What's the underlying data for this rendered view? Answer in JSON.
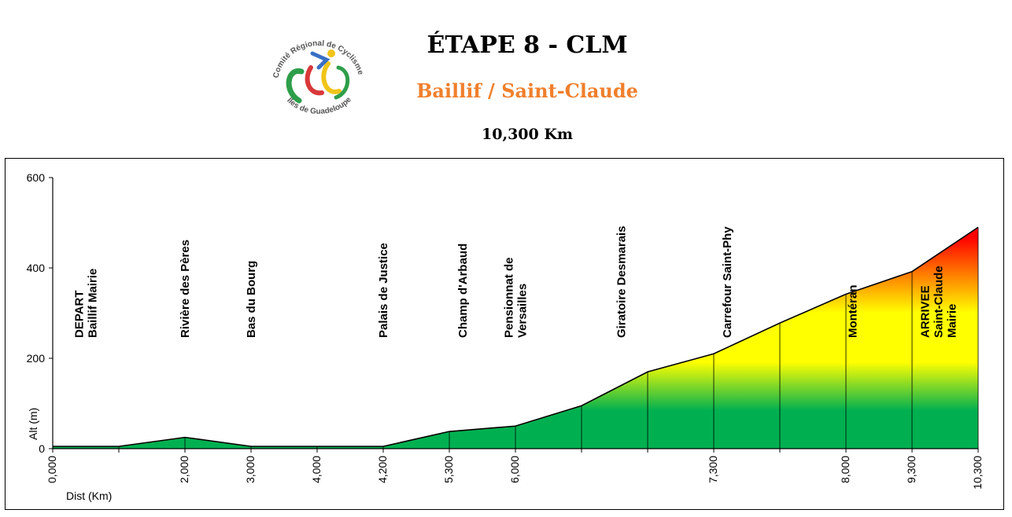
{
  "header": {
    "title": "ÉTAPE 8 - CLM",
    "subtitle": "Baillif / Saint-Claude",
    "distance": "10,300 Km",
    "logo_text_top": "Comité Régional de Cyclisme",
    "logo_text_bottom": "Îles de Guadeloupe"
  },
  "colors": {
    "title": "#000000",
    "subtitle": "#f07f2c",
    "gradient_low": "#00b050",
    "gradient_mid": "#ffff00",
    "gradient_high": "#ff0000"
  },
  "chart_data": {
    "type": "area",
    "title": "",
    "xlabel": "Dist (Km)",
    "ylabel": "Alt (m)",
    "ylim": [
      0,
      600
    ],
    "y_ticks": [
      "0",
      "200",
      "400",
      "600"
    ],
    "grid": false,
    "points": [
      {
        "idx": 0,
        "alt": 5
      },
      {
        "idx": 1,
        "alt": 5
      },
      {
        "idx": 2,
        "alt": 25
      },
      {
        "idx": 3,
        "alt": 5
      },
      {
        "idx": 4,
        "alt": 5
      },
      {
        "idx": 5,
        "alt": 5
      },
      {
        "idx": 6,
        "alt": 38
      },
      {
        "idx": 7,
        "alt": 50
      },
      {
        "idx": 8,
        "alt": 95
      },
      {
        "idx": 9,
        "alt": 170
      },
      {
        "idx": 10,
        "alt": 210
      },
      {
        "idx": 11,
        "alt": 278
      },
      {
        "idx": 12,
        "alt": 342
      },
      {
        "idx": 13,
        "alt": 392
      },
      {
        "idx": 14,
        "alt": 490
      }
    ],
    "x_tick_labels": [
      {
        "idx": 0,
        "label": "0,000"
      },
      {
        "idx": 2,
        "label": "2,000"
      },
      {
        "idx": 3,
        "label": "3,000"
      },
      {
        "idx": 4,
        "label": "4,000"
      },
      {
        "idx": 5,
        "label": "4,200"
      },
      {
        "idx": 6,
        "label": "5,300"
      },
      {
        "idx": 7,
        "label": "6,000"
      },
      {
        "idx": 10,
        "label": "7,300"
      },
      {
        "idx": 12,
        "label": "8,000"
      },
      {
        "idx": 13,
        "label": "9,300"
      },
      {
        "idx": 14,
        "label": "10,300"
      }
    ],
    "annotations": [
      {
        "idx": 0.5,
        "lines": [
          "DEPART",
          "Baillif  Mairie"
        ]
      },
      {
        "idx": 2,
        "lines": [
          "Rivière des Pères"
        ]
      },
      {
        "idx": 3,
        "lines": [
          "Bas du Bourg"
        ]
      },
      {
        "idx": 5,
        "lines": [
          "Palais de Justice"
        ]
      },
      {
        "idx": 6.2,
        "lines": [
          "Champ d'Arbaud"
        ]
      },
      {
        "idx": 7,
        "lines": [
          "Pensionnat de",
          "Versailles"
        ]
      },
      {
        "idx": 8.6,
        "lines": [
          "Giratoire Desmarais"
        ]
      },
      {
        "idx": 10.2,
        "lines": [
          "Carrefour Saint-Phy"
        ]
      },
      {
        "idx": 12.1,
        "lines": [
          "Montéran"
        ]
      },
      {
        "idx": 13.4,
        "lines": [
          "ARRIVEE",
          "Saint-Claude",
          "Mairie"
        ]
      }
    ]
  }
}
